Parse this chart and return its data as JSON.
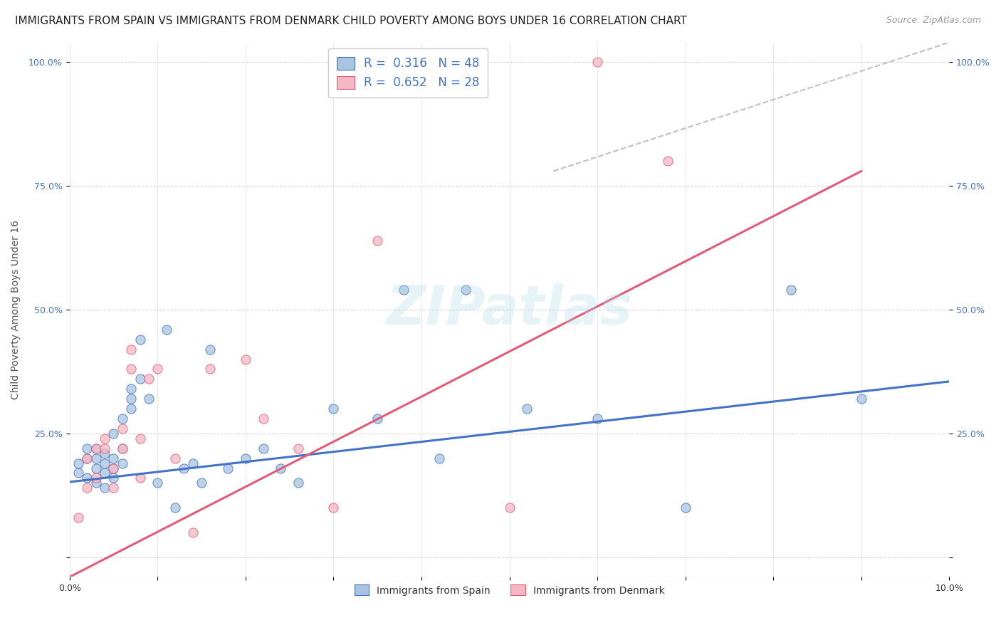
{
  "title": "IMMIGRANTS FROM SPAIN VS IMMIGRANTS FROM DENMARK CHILD POVERTY AMONG BOYS UNDER 16 CORRELATION CHART",
  "source": "Source: ZipAtlas.com",
  "ylabel": "Child Poverty Among Boys Under 16",
  "legend_label1": "Immigrants from Spain",
  "legend_label2": "Immigrants from Denmark",
  "R1": 0.316,
  "N1": 48,
  "R2": 0.652,
  "N2": 28,
  "color_spain": "#a8c4e0",
  "color_denmark": "#f4b8c4",
  "line_color_spain": "#4472c4",
  "line_color_denmark": "#e05c7a",
  "line_color_diagonal": "#c0c0c0",
  "background_color": "#ffffff",
  "xlim": [
    0.0,
    0.1
  ],
  "ylim": [
    -0.04,
    1.04
  ],
  "spain_x": [
    0.001,
    0.001,
    0.002,
    0.002,
    0.002,
    0.003,
    0.003,
    0.003,
    0.003,
    0.004,
    0.004,
    0.004,
    0.004,
    0.005,
    0.005,
    0.005,
    0.005,
    0.006,
    0.006,
    0.006,
    0.007,
    0.007,
    0.007,
    0.008,
    0.008,
    0.009,
    0.01,
    0.011,
    0.012,
    0.013,
    0.014,
    0.015,
    0.016,
    0.018,
    0.02,
    0.022,
    0.024,
    0.026,
    0.03,
    0.035,
    0.038,
    0.042,
    0.045,
    0.052,
    0.06,
    0.07,
    0.082,
    0.09
  ],
  "spain_y": [
    0.17,
    0.19,
    0.2,
    0.16,
    0.22,
    0.18,
    0.2,
    0.15,
    0.22,
    0.19,
    0.17,
    0.21,
    0.14,
    0.2,
    0.18,
    0.25,
    0.16,
    0.22,
    0.19,
    0.28,
    0.32,
    0.3,
    0.34,
    0.36,
    0.44,
    0.32,
    0.15,
    0.46,
    0.1,
    0.18,
    0.19,
    0.15,
    0.42,
    0.18,
    0.2,
    0.22,
    0.18,
    0.15,
    0.3,
    0.28,
    0.54,
    0.2,
    0.54,
    0.3,
    0.28,
    0.1,
    0.54,
    0.32
  ],
  "denmark_x": [
    0.001,
    0.002,
    0.002,
    0.003,
    0.003,
    0.004,
    0.004,
    0.005,
    0.005,
    0.006,
    0.006,
    0.007,
    0.007,
    0.008,
    0.008,
    0.009,
    0.01,
    0.012,
    0.014,
    0.016,
    0.02,
    0.022,
    0.026,
    0.03,
    0.035,
    0.05,
    0.06,
    0.068
  ],
  "denmark_y": [
    0.08,
    0.14,
    0.2,
    0.16,
    0.22,
    0.24,
    0.22,
    0.18,
    0.14,
    0.22,
    0.26,
    0.38,
    0.42,
    0.16,
    0.24,
    0.36,
    0.38,
    0.2,
    0.05,
    0.38,
    0.4,
    0.28,
    0.22,
    0.1,
    0.64,
    0.1,
    1.0,
    0.8
  ],
  "spain_line_x": [
    0.0,
    0.1
  ],
  "spain_line_y": [
    0.152,
    0.355
  ],
  "denmark_line_x": [
    0.0,
    0.09
  ],
  "denmark_line_y": [
    -0.04,
    0.78
  ],
  "diag_line_x": [
    0.055,
    0.1
  ],
  "diag_line_y": [
    0.78,
    1.04
  ],
  "marker_size": 90,
  "title_fontsize": 11,
  "label_fontsize": 10,
  "tick_fontsize": 9,
  "legend_fontsize": 10,
  "source_fontsize": 9
}
